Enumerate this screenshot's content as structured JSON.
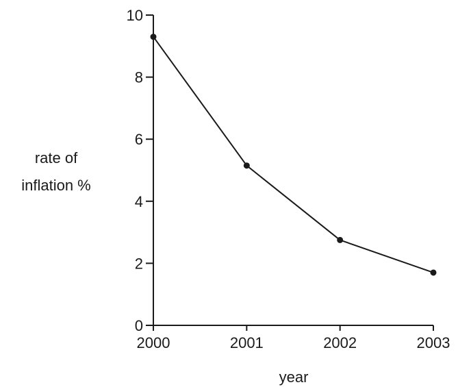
{
  "chart_data": {
    "type": "line",
    "title": "",
    "x": [
      2000,
      2001,
      2002,
      2003
    ],
    "xticks": [
      "2000",
      "2001",
      "2002",
      "2003"
    ],
    "series": [
      {
        "values": [
          9.3,
          5.15,
          2.75,
          1.7
        ]
      }
    ],
    "yticks": [
      "0",
      "2",
      "4",
      "6",
      "8",
      "10"
    ],
    "xlabel": "year",
    "ylabel_line1": "rate of",
    "ylabel_line2": "inflation %",
    "xlim": [
      2000,
      2003
    ],
    "ylim": [
      0,
      10
    ],
    "grid": false,
    "legend": "none",
    "line_color": "#1a1a1a",
    "marker": "filled-circle"
  }
}
